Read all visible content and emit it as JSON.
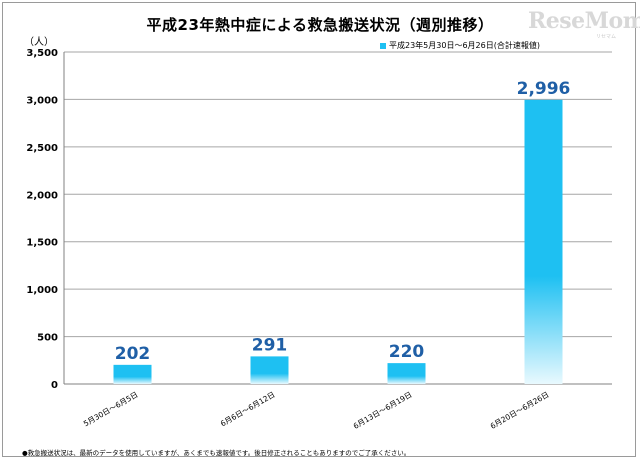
{
  "chart_data": {
    "type": "bar",
    "title": "平成23年熱中症による救急搬送状況（週別推移）",
    "unit_label": "（人）",
    "categories": [
      "5月30日～6月5日",
      "6月6日～6月12日",
      "6月13日～6月19日",
      "6月20日～6月26日"
    ],
    "series": [
      {
        "name": "平成23年5月30日～6月26日(合計速報値)",
        "values": [
          202,
          291,
          220,
          2996
        ],
        "color": "#1ec0f2"
      }
    ],
    "data_labels": [
      "202",
      "291",
      "220",
      "2,996"
    ],
    "yticks": [
      "0",
      "500",
      "1,000",
      "1,500",
      "2,000",
      "2,500",
      "3,000",
      "3,500"
    ],
    "ylim": [
      0,
      3500
    ],
    "grid": true,
    "legend_position": "top-right"
  },
  "footnote": "●救急搬送状況は、最新のデータを使用していますが、あくまでも速報値です。後日修正されることもありますのでご了承ください。",
  "watermark": {
    "brand": "ReseMom",
    "sub": "リセマム"
  }
}
